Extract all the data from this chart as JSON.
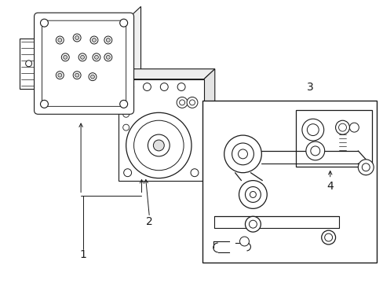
{
  "bg_color": "#ffffff",
  "line_color": "#1a1a1a",
  "fig_width": 4.89,
  "fig_height": 3.6,
  "dpi": 100,
  "label_fontsize": 9,
  "labels": [
    "1",
    "2",
    "3",
    "4"
  ],
  "border_color": "#333333"
}
